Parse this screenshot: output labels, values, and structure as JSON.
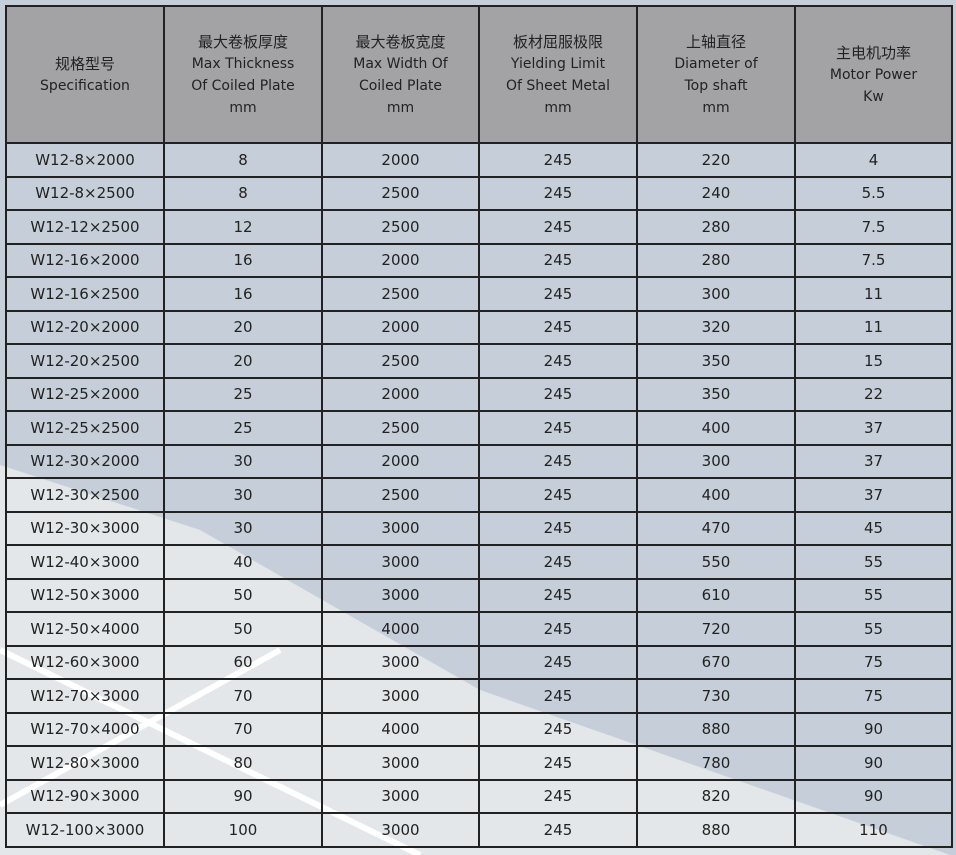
{
  "table": {
    "headers": [
      {
        "zh": "规格型号",
        "en": [
          "Specification"
        ]
      },
      {
        "zh": "最大卷板厚度",
        "en": [
          "Max Thickness",
          "Of Coiled Plate",
          "mm"
        ]
      },
      {
        "zh": "最大卷板宽度",
        "en": [
          "Max Width  Of",
          "Coiled Plate",
          "mm"
        ]
      },
      {
        "zh": "板材屈服极限",
        "en": [
          "Yielding Limit",
          "Of  Sheet Metal",
          "mm"
        ]
      },
      {
        "zh": "上轴直径",
        "en": [
          "Diameter of",
          "Top shaft",
          "mm"
        ]
      },
      {
        "zh": "主电机功率",
        "en": [
          "Motor Power",
          "Kw"
        ]
      }
    ],
    "rows": [
      [
        "W12-8×2000",
        "8",
        "2000",
        "245",
        "220",
        "4"
      ],
      [
        "W12-8×2500",
        "8",
        "2500",
        "245",
        "240",
        "5.5"
      ],
      [
        "W12-12×2500",
        "12",
        "2500",
        "245",
        "280",
        "7.5"
      ],
      [
        "W12-16×2000",
        "16",
        "2000",
        "245",
        "280",
        "7.5"
      ],
      [
        "W12-16×2500",
        "16",
        "2500",
        "245",
        "300",
        "11"
      ],
      [
        "W12-20×2000",
        "20",
        "2000",
        "245",
        "320",
        "11"
      ],
      [
        "W12-20×2500",
        "20",
        "2500",
        "245",
        "350",
        "15"
      ],
      [
        "W12-25×2000",
        "25",
        "2000",
        "245",
        "350",
        "22"
      ],
      [
        "W12-25×2500",
        "25",
        "2500",
        "245",
        "400",
        "37"
      ],
      [
        "W12-30×2000",
        "30",
        "2000",
        "245",
        "300",
        "37"
      ],
      [
        "W12-30×2500",
        "30",
        "2500",
        "245",
        "400",
        "37"
      ],
      [
        "W12-30×3000",
        "30",
        "3000",
        "245",
        "470",
        "45"
      ],
      [
        "W12-40×3000",
        "40",
        "3000",
        "245",
        "550",
        "55"
      ],
      [
        "W12-50×3000",
        "50",
        "3000",
        "245",
        "610",
        "55"
      ],
      [
        "W12-50×4000",
        "50",
        "4000",
        "245",
        "720",
        "55"
      ],
      [
        "W12-60×3000",
        "60",
        "3000",
        "245",
        "670",
        "75"
      ],
      [
        "W12-70×3000",
        "70",
        "3000",
        "245",
        "730",
        "75"
      ],
      [
        "W12-70×4000",
        "70",
        "4000",
        "245",
        "880",
        "90"
      ],
      [
        "W12-80×3000",
        "80",
        "3000",
        "245",
        "780",
        "90"
      ],
      [
        "W12-90×3000",
        "90",
        "3000",
        "245",
        "820",
        "90"
      ],
      [
        "W12-100×3000",
        "100",
        "3000",
        "245",
        "880",
        "110"
      ]
    ]
  },
  "colors": {
    "header": "#a3a3a5",
    "background": "#c6cfd9",
    "light_band": "#e3e7e9"
  }
}
